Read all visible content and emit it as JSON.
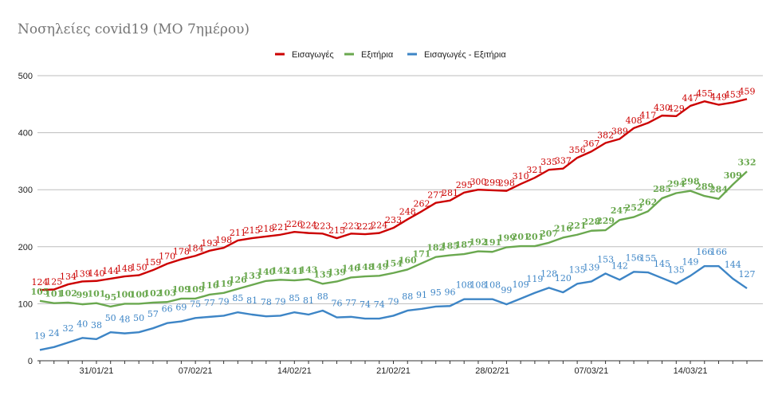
{
  "chart_data": {
    "type": "line",
    "title": "Νοσηλείες covid19 (ΜΟ 7ημέρου)",
    "xlabel": "",
    "ylabel": "",
    "ylim": [
      0,
      500
    ],
    "yticks": [
      "0",
      "100",
      "200",
      "300",
      "400",
      "500"
    ],
    "xtick_labels": [
      "31/01/21",
      "07/02/21",
      "14/02/21",
      "21/02/21",
      "28/02/21",
      "07/03/21",
      "14/03/21"
    ],
    "xtick_label_index": [
      4,
      11,
      18,
      25,
      32,
      39,
      46
    ],
    "legend_position": "top-center",
    "grid": "horizontal",
    "series": [
      {
        "name": "Εισαγωγές",
        "color": "#cc0000",
        "values": [
          124,
          125,
          134,
          139,
          140,
          144,
          148,
          150,
          159,
          170,
          178,
          184,
          193,
          198,
          211,
          215,
          218,
          221,
          226,
          224,
          223,
          215,
          223,
          222,
          224,
          233,
          248,
          262,
          277,
          281,
          295,
          300,
          299,
          298,
          310,
          321,
          335,
          337,
          356,
          367,
          382,
          389,
          408,
          417,
          430,
          429,
          447,
          455,
          449,
          453,
          459
        ]
      },
      {
        "name": "Εξιτήρια",
        "color": "#6aa84f",
        "values": [
          105,
          101,
          102,
          99,
          101,
          95,
          100,
          100,
          102,
          103,
          109,
          109,
          116,
          119,
          126,
          133,
          140,
          142,
          141,
          143,
          135,
          139,
          146,
          148,
          149,
          154,
          160,
          171,
          182,
          185,
          187,
          192,
          191,
          199,
          201,
          201,
          207,
          216,
          221,
          228,
          229,
          247,
          252,
          262,
          285,
          294,
          298,
          289,
          284,
          309,
          332
        ]
      },
      {
        "name": "Εισαγωγές - Εξιτήρια",
        "color": "#3d85c6",
        "values": [
          19,
          24,
          32,
          40,
          38,
          50,
          48,
          50,
          57,
          66,
          69,
          75,
          77,
          79,
          85,
          81,
          78,
          79,
          85,
          81,
          88,
          76,
          77,
          74,
          74,
          79,
          88,
          91,
          95,
          96,
          108,
          108,
          108,
          99,
          109,
          119,
          128,
          120,
          135,
          139,
          153,
          142,
          156,
          155,
          145,
          135,
          149,
          166,
          166,
          144,
          127
        ]
      }
    ]
  }
}
